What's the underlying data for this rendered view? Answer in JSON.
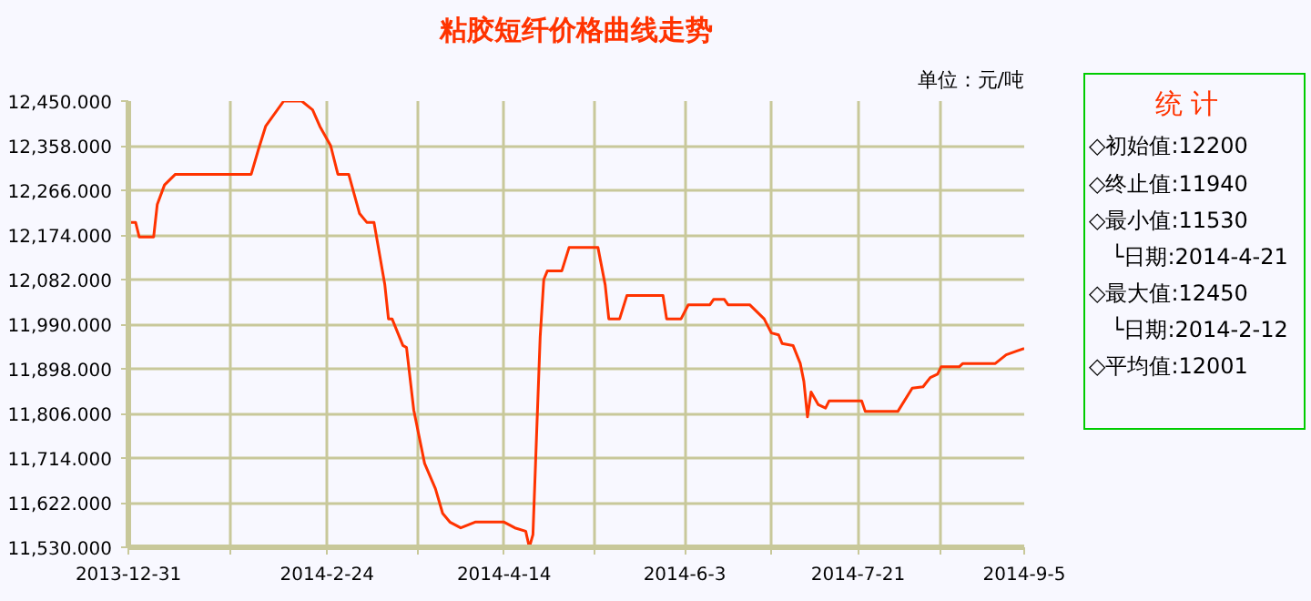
{
  "chart_data": {
    "type": "line",
    "title": "粘胶短纤价格曲线走势",
    "subtitle": "单位：元/吨",
    "annotations": [
      "统 计",
      "◇初始值:12200",
      "◇终止值:11940",
      "◇最小值:11530",
      "└日期:2014-4-21",
      "◇最大值:12450",
      "└日期:2014-2-12",
      "◇平均值:12001"
    ],
    "x": [
      "2013-12-31",
      "2014-01-02",
      "2014-01-03",
      "2014-01-07",
      "2014-01-08",
      "2014-01-10",
      "2014-01-13",
      "2014-02-03",
      "2014-02-05",
      "2014-02-07",
      "2014-02-12",
      "2014-02-17",
      "2014-02-20",
      "2014-02-22",
      "2014-02-25",
      "2014-02-27",
      "2014-03-02",
      "2014-03-05",
      "2014-03-07",
      "2014-03-09",
      "2014-03-12",
      "2014-03-13",
      "2014-03-14",
      "2014-03-17",
      "2014-03-18",
      "2014-03-20",
      "2014-03-23",
      "2014-03-26",
      "2014-03-28",
      "2014-03-30",
      "2014-04-02",
      "2014-04-06",
      "2014-04-14",
      "2014-04-17",
      "2014-04-20",
      "2014-04-21",
      "2014-04-22",
      "2014-04-24",
      "2014-04-25",
      "2014-04-26",
      "2014-04-30",
      "2014-05-02",
      "2014-05-10",
      "2014-05-12",
      "2014-05-13",
      "2014-05-16",
      "2014-05-18",
      "2014-05-28",
      "2014-05-29",
      "2014-06-02",
      "2014-06-04",
      "2014-06-10",
      "2014-06-11",
      "2014-06-14",
      "2014-06-15",
      "2014-06-21",
      "2014-06-25",
      "2014-06-27",
      "2014-06-29",
      "2014-06-30",
      "2014-07-03",
      "2014-07-05",
      "2014-07-06",
      "2014-07-07",
      "2014-07-08",
      "2014-07-10",
      "2014-07-12",
      "2014-07-13",
      "2014-07-22",
      "2014-07-23",
      "2014-08-01",
      "2014-08-05",
      "2014-08-08",
      "2014-08-10",
      "2014-08-12",
      "2014-08-13",
      "2014-08-18",
      "2014-08-19",
      "2014-08-28",
      "2014-08-31",
      "2014-09-03",
      "2014-09-05"
    ],
    "series": [
      {
        "color": "#ff3300",
        "values": [
          12200,
          12200,
          12170,
          12170,
          12237,
          12277,
          12299,
          12299,
          12350,
          12398,
          12450,
          12450,
          12432,
          12398,
          12358,
          12299,
          12299,
          12218,
          12200,
          12200,
          12071,
          12001,
          12001,
          11946,
          11942,
          11813,
          11703,
          11651,
          11600,
          11582,
          11570,
          11582,
          11582,
          11570,
          11563,
          11530,
          11556,
          11964,
          12082,
          12100,
          12100,
          12148,
          12148,
          12071,
          12001,
          12001,
          12049,
          12049,
          12001,
          12001,
          12030,
          12030,
          12041,
          12041,
          12030,
          12030,
          12001,
          11972,
          11968,
          11950,
          11946,
          11909,
          11872,
          11799,
          11850,
          11824,
          11817,
          11832,
          11832,
          11810,
          11810,
          11858,
          11861,
          11880,
          11887,
          11902,
          11902,
          11909,
          11909,
          11927,
          11935,
          11940
        ]
      }
    ],
    "xlim": [
      "2013-12-31",
      "2014-09-05"
    ],
    "ylim": [
      11530,
      12450
    ],
    "xticks": [
      {
        "value": "2013-12-31",
        "label": "2013-12-31"
      },
      {
        "value": "2014-01-28",
        "label": null
      },
      {
        "value": "2014-02-24",
        "label": "2014-2-24"
      },
      {
        "value": "2014-03-21",
        "label": null
      },
      {
        "value": "2014-04-14",
        "label": "2014-4-14"
      },
      {
        "value": "2014-05-09",
        "label": null
      },
      {
        "value": "2014-06-03",
        "label": "2014-6-3"
      },
      {
        "value": "2014-06-27",
        "label": null
      },
      {
        "value": "2014-07-21",
        "label": "2014-7-21"
      },
      {
        "value": "2014-08-13",
        "label": null
      },
      {
        "value": "2014-09-05",
        "label": "2014-9-5"
      }
    ],
    "yticks": [
      {
        "value": 11530,
        "label": "11,530.000"
      },
      {
        "value": 11622,
        "label": "11,622.000"
      },
      {
        "value": 11714,
        "label": "11,714.000"
      },
      {
        "value": 11806,
        "label": "11,806.000"
      },
      {
        "value": 11898,
        "label": "11,898.000"
      },
      {
        "value": 11990,
        "label": "11,990.000"
      },
      {
        "value": 12082,
        "label": "12,082.000"
      },
      {
        "value": 12174,
        "label": "12,174.000"
      },
      {
        "value": 12266,
        "label": "12,266.000"
      },
      {
        "value": 12358,
        "label": "12,358.000"
      },
      {
        "value": 12450,
        "label": "12,450.000"
      }
    ],
    "grid": true
  }
}
